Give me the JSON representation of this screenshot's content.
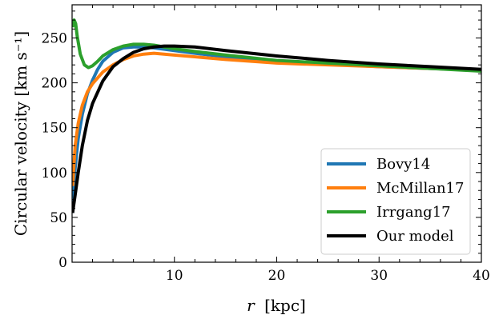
{
  "chart_data": {
    "type": "line",
    "xlabel_var": "r",
    "xlabel_unit": "[kpc]",
    "ylabel": "Circular velocity [km s⁻¹]",
    "xlim": [
      0,
      40
    ],
    "ylim": [
      0,
      287
    ],
    "xticks": [
      10,
      20,
      30,
      40
    ],
    "yticks": [
      0,
      50,
      100,
      150,
      200,
      250
    ],
    "legend_position": "lower-right",
    "grid": false,
    "series": [
      {
        "name": "Bovy14",
        "color": "#1f77b4",
        "x": [
          0.05,
          0.3,
          0.6,
          1.0,
          1.5,
          2.0,
          2.5,
          3.0,
          4.0,
          5.0,
          6.0,
          7.0,
          8.0,
          10.0,
          12.0,
          15.0,
          20.0,
          25.0,
          30.0,
          35.0,
          40.0
        ],
        "y": [
          55,
          105,
          138,
          165,
          188,
          203,
          215,
          224,
          234,
          239,
          240,
          240,
          239,
          236,
          233,
          229,
          223,
          221,
          218,
          216,
          214
        ]
      },
      {
        "name": "McMillan17",
        "color": "#ff7f0e",
        "x": [
          0.05,
          0.3,
          0.6,
          1.0,
          1.5,
          2.0,
          3.0,
          4.0,
          5.0,
          6.0,
          7.0,
          8.0,
          9.0,
          10.0,
          12.0,
          15.0,
          20.0,
          25.0,
          30.0,
          35.0,
          40.0
        ],
        "y": [
          85,
          130,
          155,
          175,
          190,
          199,
          212,
          220,
          226,
          230,
          232,
          233,
          232,
          231,
          229,
          226,
          222,
          220,
          218,
          216,
          214
        ]
      },
      {
        "name": "Irrgang17",
        "color": "#2ca02c",
        "x": [
          0.05,
          0.2,
          0.35,
          0.5,
          0.8,
          1.2,
          1.6,
          2.0,
          2.5,
          3.0,
          4.0,
          5.0,
          6.0,
          7.0,
          8.0,
          9.0,
          10.0,
          12.0,
          15.0,
          20.0,
          25.0,
          30.0,
          35.0,
          40.0
        ],
        "y": [
          262,
          270,
          266,
          252,
          232,
          220,
          217,
          219,
          224,
          230,
          237,
          241,
          243,
          243,
          242,
          240,
          238,
          235,
          231,
          225,
          222,
          219,
          216,
          213
        ]
      },
      {
        "name": "Our model",
        "color": "#000000",
        "x": [
          0.05,
          0.3,
          0.6,
          1.0,
          1.5,
          2.0,
          3.0,
          4.0,
          5.0,
          6.0,
          7.0,
          8.0,
          9.0,
          10.0,
          12.0,
          15.0,
          20.0,
          25.0,
          30.0,
          35.0,
          40.0
        ],
        "y": [
          55,
          75,
          100,
          130,
          158,
          177,
          202,
          218,
          227,
          234,
          238,
          240,
          241,
          241,
          240,
          236,
          230,
          225,
          221,
          218,
          215
        ]
      }
    ]
  }
}
